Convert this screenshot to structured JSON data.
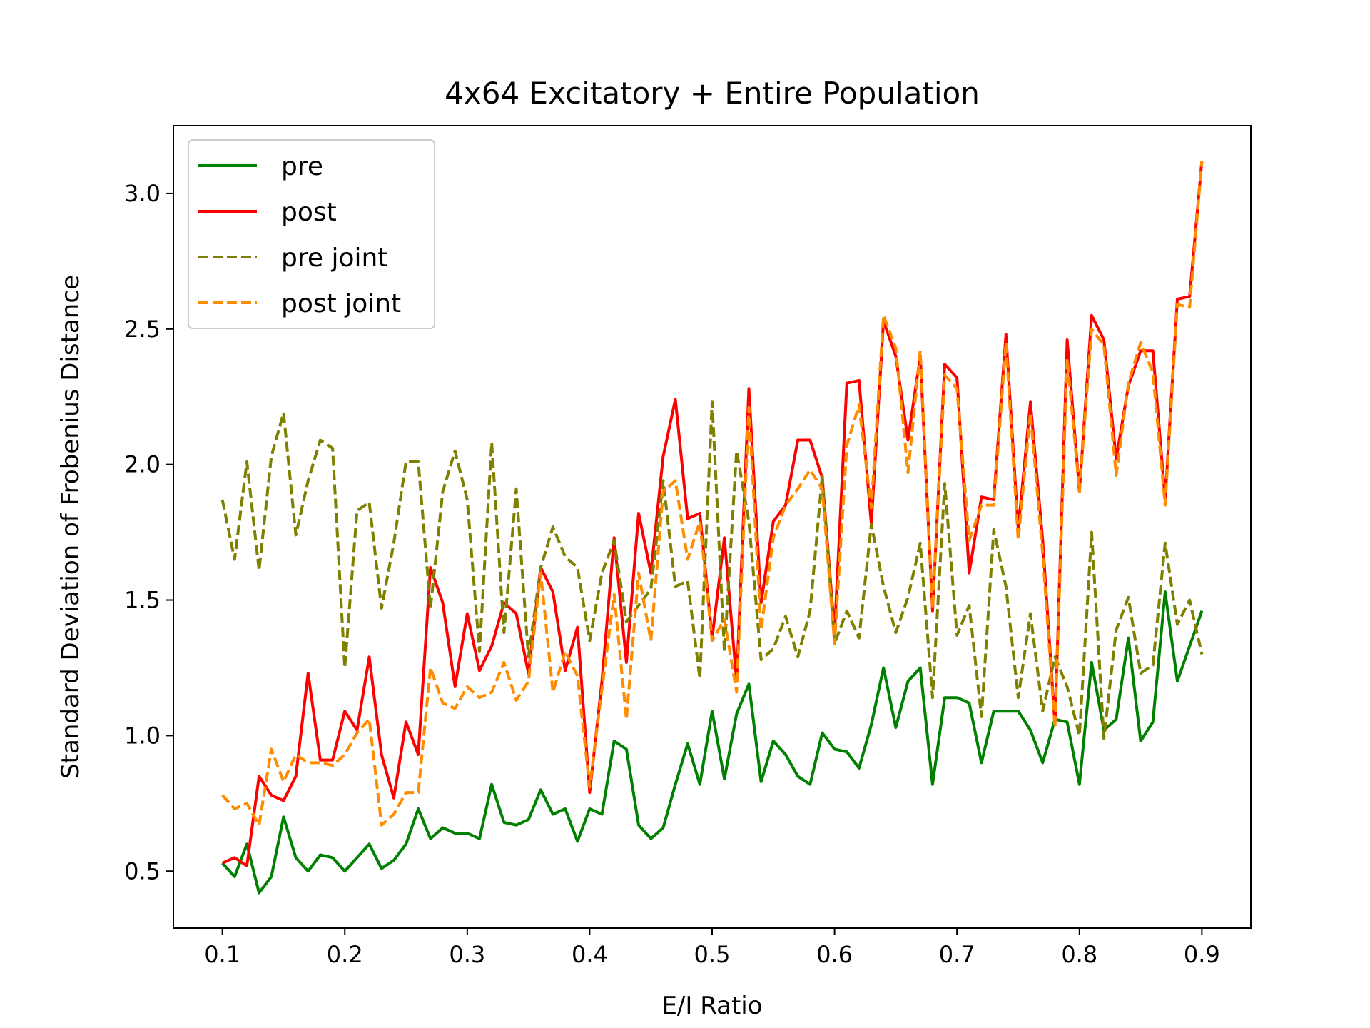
{
  "chart_data": {
    "type": "line",
    "title": "4x64 Excitatory + Entire Population",
    "xlabel": "E/I Ratio",
    "ylabel": "Standard Deviation of Frobenius Distance",
    "xlim": [
      0.06,
      0.94
    ],
    "ylim": [
      0.29,
      3.25
    ],
    "xticks": [
      0.1,
      0.2,
      0.3,
      0.4,
      0.5,
      0.6,
      0.7,
      0.8,
      0.9
    ],
    "xtick_labels": [
      "0.1",
      "0.2",
      "0.3",
      "0.4",
      "0.5",
      "0.6",
      "0.7",
      "0.8",
      "0.9"
    ],
    "yticks": [
      0.5,
      1.0,
      1.5,
      2.0,
      2.5,
      3.0
    ],
    "ytick_labels": [
      "0.5",
      "1.0",
      "1.5",
      "2.0",
      "2.5",
      "3.0"
    ],
    "grid": false,
    "legend_position": "upper-left",
    "x": [
      0.1,
      0.11,
      0.12,
      0.13,
      0.14,
      0.15,
      0.16,
      0.17,
      0.18,
      0.19,
      0.2,
      0.21,
      0.22,
      0.23,
      0.24,
      0.25,
      0.26,
      0.27,
      0.28,
      0.29,
      0.3,
      0.31,
      0.32,
      0.33,
      0.34,
      0.35,
      0.36,
      0.37,
      0.38,
      0.39,
      0.4,
      0.41,
      0.42,
      0.43,
      0.44,
      0.45,
      0.46,
      0.47,
      0.48,
      0.49,
      0.5,
      0.51,
      0.52,
      0.53,
      0.54,
      0.55,
      0.56,
      0.57,
      0.58,
      0.59,
      0.6,
      0.61,
      0.62,
      0.63,
      0.64,
      0.65,
      0.66,
      0.67,
      0.68,
      0.69,
      0.7,
      0.71,
      0.72,
      0.73,
      0.74,
      0.75,
      0.76,
      0.77,
      0.78,
      0.79,
      0.8,
      0.81,
      0.82,
      0.83,
      0.84,
      0.85,
      0.86,
      0.87,
      0.88,
      0.89,
      0.9
    ],
    "series": [
      {
        "name": "pre",
        "color": "#008000",
        "dash": "solid",
        "values": [
          0.53,
          0.48,
          0.6,
          0.42,
          0.48,
          0.7,
          0.55,
          0.5,
          0.56,
          0.55,
          0.5,
          0.55,
          0.6,
          0.51,
          0.54,
          0.6,
          0.73,
          0.62,
          0.66,
          0.64,
          0.64,
          0.62,
          0.82,
          0.68,
          0.67,
          0.69,
          0.8,
          0.71,
          0.73,
          0.61,
          0.73,
          0.71,
          0.98,
          0.95,
          0.67,
          0.62,
          0.66,
          0.82,
          0.97,
          0.82,
          1.09,
          0.84,
          1.08,
          1.19,
          0.83,
          0.98,
          0.93,
          0.85,
          0.82,
          1.01,
          0.95,
          0.94,
          0.88,
          1.04,
          1.25,
          1.03,
          1.2,
          1.25,
          0.82,
          1.14,
          1.14,
          1.12,
          0.9,
          1.09,
          1.09,
          1.09,
          1.02,
          0.9,
          1.06,
          1.05,
          0.82,
          1.27,
          1.02,
          1.06,
          1.36,
          0.98,
          1.05,
          1.53,
          1.2,
          1.33,
          1.46
        ]
      },
      {
        "name": "post",
        "color": "#ff0000",
        "dash": "solid",
        "values": [
          0.53,
          0.55,
          0.52,
          0.85,
          0.78,
          0.76,
          0.85,
          1.23,
          0.91,
          0.91,
          1.09,
          1.02,
          1.29,
          0.93,
          0.77,
          1.05,
          0.93,
          1.62,
          1.49,
          1.18,
          1.45,
          1.24,
          1.33,
          1.49,
          1.45,
          1.23,
          1.62,
          1.53,
          1.24,
          1.4,
          0.79,
          1.2,
          1.73,
          1.27,
          1.82,
          1.6,
          2.03,
          2.24,
          1.8,
          1.82,
          1.36,
          1.73,
          1.2,
          2.28,
          1.49,
          1.79,
          1.85,
          2.09,
          2.09,
          1.95,
          1.38,
          2.3,
          2.31,
          1.78,
          2.53,
          2.4,
          2.09,
          2.4,
          1.46,
          2.37,
          2.32,
          1.6,
          1.88,
          1.87,
          2.48,
          1.76,
          2.23,
          1.72,
          1.04,
          2.46,
          1.9,
          2.55,
          2.46,
          2.02,
          2.29,
          2.42,
          2.42,
          1.87,
          2.61,
          2.62,
          3.12
        ]
      },
      {
        "name": "pre joint",
        "color": "#808000",
        "dash": "dashed",
        "values": [
          1.87,
          1.65,
          2.01,
          1.61,
          2.03,
          2.19,
          1.74,
          1.94,
          2.09,
          2.06,
          1.25,
          1.83,
          1.86,
          1.47,
          1.71,
          2.01,
          2.01,
          1.47,
          1.9,
          2.05,
          1.87,
          1.31,
          2.08,
          1.38,
          1.91,
          1.29,
          1.62,
          1.77,
          1.66,
          1.62,
          1.35,
          1.6,
          1.72,
          1.42,
          1.48,
          1.54,
          1.94,
          1.55,
          1.57,
          1.21,
          2.23,
          1.31,
          2.05,
          1.79,
          1.28,
          1.32,
          1.44,
          1.29,
          1.46,
          1.96,
          1.34,
          1.46,
          1.36,
          1.78,
          1.55,
          1.38,
          1.51,
          1.71,
          1.14,
          1.93,
          1.37,
          1.48,
          1.07,
          1.76,
          1.55,
          1.14,
          1.45,
          1.09,
          1.29,
          1.18,
          1.0,
          1.75,
          0.99,
          1.39,
          1.51,
          1.23,
          1.26,
          1.71,
          1.41,
          1.5,
          1.3
        ]
      },
      {
        "name": "post joint",
        "color": "#ff8c00",
        "dash": "dashed",
        "values": [
          0.78,
          0.73,
          0.75,
          0.67,
          0.95,
          0.83,
          0.93,
          0.9,
          0.9,
          0.89,
          0.93,
          1.01,
          1.06,
          0.67,
          0.71,
          0.79,
          0.79,
          1.25,
          1.12,
          1.1,
          1.18,
          1.14,
          1.16,
          1.27,
          1.13,
          1.2,
          1.6,
          1.16,
          1.31,
          1.22,
          0.81,
          1.17,
          1.52,
          1.06,
          1.6,
          1.35,
          1.9,
          1.94,
          1.65,
          1.79,
          1.35,
          1.43,
          1.16,
          2.21,
          1.39,
          1.73,
          1.85,
          1.91,
          1.98,
          1.91,
          1.34,
          2.07,
          2.22,
          1.84,
          2.55,
          2.43,
          1.97,
          2.42,
          1.47,
          2.33,
          2.28,
          1.72,
          1.85,
          1.85,
          2.45,
          1.72,
          2.19,
          1.67,
          1.03,
          2.39,
          1.9,
          2.5,
          2.44,
          1.96,
          2.3,
          2.45,
          2.34,
          1.85,
          2.59,
          2.58,
          3.12
        ]
      }
    ]
  }
}
